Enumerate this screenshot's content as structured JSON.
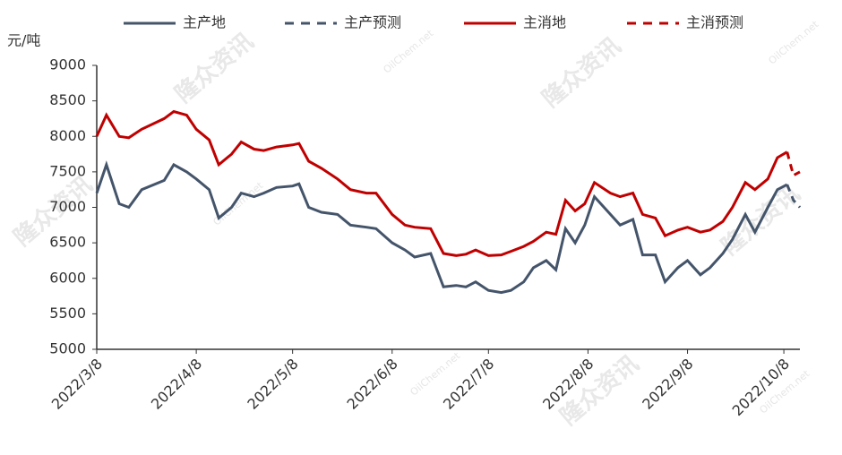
{
  "chart_data": {
    "type": "line",
    "y_label": "元/吨",
    "watermark": [
      "隆众资讯",
      "OilChem.net"
    ],
    "x": [
      "2022/3/8",
      "2022/3/11",
      "2022/3/15",
      "2022/3/18",
      "2022/3/22",
      "2022/3/29",
      "2022/4/1",
      "2022/4/5",
      "2022/4/8",
      "2022/4/12",
      "2022/4/15",
      "2022/4/19",
      "2022/4/22",
      "2022/4/26",
      "2022/4/29",
      "2022/5/3",
      "2022/5/8",
      "2022/5/10",
      "2022/5/13",
      "2022/5/17",
      "2022/5/22",
      "2022/5/26",
      "2022/5/31",
      "2022/6/3",
      "2022/6/8",
      "2022/6/12",
      "2022/6/15",
      "2022/6/20",
      "2022/6/24",
      "2022/6/28",
      "2022/7/1",
      "2022/7/4",
      "2022/7/8",
      "2022/7/12",
      "2022/7/15",
      "2022/7/19",
      "2022/7/22",
      "2022/7/26",
      "2022/7/29",
      "2022/8/1",
      "2022/8/4",
      "2022/8/7",
      "2022/8/10",
      "2022/8/15",
      "2022/8/18",
      "2022/8/22",
      "2022/8/25",
      "2022/8/29",
      "2022/9/1",
      "2022/9/5",
      "2022/9/8",
      "2022/9/12",
      "2022/9/15",
      "2022/9/19",
      "2022/9/22",
      "2022/9/26",
      "2022/9/29",
      "2022/10/3",
      "2022/10/6",
      "2022/10/9",
      "2022/10/11",
      "2022/10/13"
    ],
    "series": [
      {
        "name": "主产地",
        "color": "#44546a",
        "dash": false,
        "values": [
          7200,
          7600,
          7050,
          7000,
          7250,
          7380,
          7600,
          7500,
          7400,
          7250,
          6850,
          7000,
          7200,
          7150,
          7200,
          7280,
          7300,
          7330,
          7000,
          6930,
          6900,
          6750,
          6720,
          6700,
          6500,
          6400,
          6300,
          6350,
          5880,
          5900,
          5880,
          5950,
          5830,
          5800,
          5830,
          5950,
          6150,
          6250,
          6120,
          6700,
          6500,
          6750,
          7150,
          6900,
          6750,
          6830,
          6330,
          6330,
          5950,
          6150,
          6250,
          6050,
          6150,
          6350,
          6550,
          6900,
          6650,
          7000,
          7250,
          7320,
          null,
          null
        ]
      },
      {
        "name": "主产预测",
        "color": "#44546a",
        "dash": true,
        "values": [
          null,
          null,
          null,
          null,
          null,
          null,
          null,
          null,
          null,
          null,
          null,
          null,
          null,
          null,
          null,
          null,
          null,
          null,
          null,
          null,
          null,
          null,
          null,
          null,
          null,
          null,
          null,
          null,
          null,
          null,
          null,
          null,
          null,
          null,
          null,
          null,
          null,
          null,
          null,
          null,
          null,
          null,
          null,
          null,
          null,
          null,
          null,
          null,
          null,
          null,
          null,
          null,
          null,
          null,
          null,
          null,
          null,
          null,
          null,
          7320,
          7100,
          7000
        ]
      },
      {
        "name": "主消地",
        "color": "#c00000",
        "dash": false,
        "values": [
          8000,
          8300,
          8000,
          7980,
          8100,
          8250,
          8350,
          8300,
          8100,
          7950,
          7600,
          7750,
          7920,
          7820,
          7800,
          7850,
          7880,
          7900,
          7650,
          7550,
          7400,
          7250,
          7200,
          7200,
          6900,
          6750,
          6720,
          6700,
          6350,
          6320,
          6340,
          6400,
          6320,
          6330,
          6380,
          6450,
          6520,
          6650,
          6620,
          7100,
          6950,
          7050,
          7350,
          7200,
          7150,
          7200,
          6900,
          6850,
          6600,
          6680,
          6720,
          6650,
          6680,
          6800,
          7000,
          7350,
          7250,
          7400,
          7700,
          7780,
          null,
          null
        ]
      },
      {
        "name": "主消预测",
        "color": "#c00000",
        "dash": true,
        "values": [
          null,
          null,
          null,
          null,
          null,
          null,
          null,
          null,
          null,
          null,
          null,
          null,
          null,
          null,
          null,
          null,
          null,
          null,
          null,
          null,
          null,
          null,
          null,
          null,
          null,
          null,
          null,
          null,
          null,
          null,
          null,
          null,
          null,
          null,
          null,
          null,
          null,
          null,
          null,
          null,
          null,
          null,
          null,
          null,
          null,
          null,
          null,
          null,
          null,
          null,
          null,
          null,
          null,
          null,
          null,
          null,
          null,
          null,
          null,
          7780,
          7450,
          7500
        ]
      }
    ],
    "xlim": [
      "2022/3/8",
      "2022/10/13"
    ],
    "xticks": [
      "2022/3/8",
      "2022/4/8",
      "2022/5/8",
      "2022/6/8",
      "2022/7/8",
      "2022/8/8",
      "2022/9/8",
      "2022/10/8"
    ],
    "ylim": [
      5000,
      9000
    ],
    "yticks": [
      5000,
      5500,
      6000,
      6500,
      7000,
      7500,
      8000,
      8500,
      9000
    ],
    "grid": false,
    "legend": "top"
  }
}
